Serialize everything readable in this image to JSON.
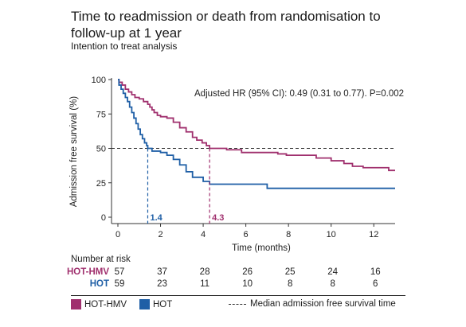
{
  "title": "Time to readmission or death from randomisation to follow-up at 1 year",
  "subtitle": "Intention to treat analysis",
  "colors": {
    "hmv": "#a0306e",
    "hot": "#1f5fa6",
    "median": "#333333"
  },
  "chart_data": {
    "type": "line",
    "step": true,
    "xlabel": "Time (months)",
    "ylabel": "Admission free survival (%)",
    "xlim": [
      0,
      13
    ],
    "ylim": [
      0,
      100
    ],
    "xticks": [
      0,
      2,
      4,
      6,
      8,
      10,
      12
    ],
    "yticks": [
      0,
      25,
      50,
      75,
      100
    ],
    "annotation": "Adjusted HR (95% CI): 0.49 (0.31 to 0.77). P=0.002",
    "median_line": {
      "y": 50
    },
    "medians": [
      {
        "series": "HOT",
        "x": 1.4,
        "label": "1.4"
      },
      {
        "series": "HOT-HMV",
        "x": 4.3,
        "label": "4.3"
      }
    ],
    "series": [
      {
        "name": "HOT-HMV",
        "color": "#a0306e",
        "points": [
          [
            0,
            100
          ],
          [
            0.05,
            98
          ],
          [
            0.2,
            96
          ],
          [
            0.35,
            93
          ],
          [
            0.5,
            91
          ],
          [
            0.65,
            89
          ],
          [
            0.8,
            87
          ],
          [
            1.0,
            86
          ],
          [
            1.2,
            84
          ],
          [
            1.4,
            82
          ],
          [
            1.5,
            80
          ],
          [
            1.6,
            78
          ],
          [
            1.7,
            76
          ],
          [
            1.85,
            74
          ],
          [
            2.0,
            73
          ],
          [
            2.3,
            72
          ],
          [
            2.6,
            69
          ],
          [
            2.9,
            65
          ],
          [
            3.2,
            62
          ],
          [
            3.5,
            58
          ],
          [
            3.7,
            56
          ],
          [
            3.95,
            54
          ],
          [
            4.15,
            52
          ],
          [
            4.3,
            50
          ],
          [
            4.6,
            50
          ],
          [
            5.1,
            49
          ],
          [
            5.8,
            47
          ],
          [
            7.5,
            46
          ],
          [
            7.9,
            45
          ],
          [
            8.7,
            45
          ],
          [
            9.3,
            43
          ],
          [
            10.0,
            41
          ],
          [
            10.6,
            39
          ],
          [
            11.0,
            37
          ],
          [
            11.5,
            36
          ],
          [
            12.7,
            34
          ],
          [
            13.0,
            34
          ]
        ],
        "at_risk": [
          57,
          37,
          28,
          26,
          25,
          24,
          16
        ]
      },
      {
        "name": "HOT",
        "color": "#1f5fa6",
        "points": [
          [
            0,
            100
          ],
          [
            0.05,
            96
          ],
          [
            0.15,
            93
          ],
          [
            0.25,
            90
          ],
          [
            0.35,
            87
          ],
          [
            0.45,
            84
          ],
          [
            0.55,
            80
          ],
          [
            0.65,
            76
          ],
          [
            0.75,
            72
          ],
          [
            0.85,
            68
          ],
          [
            0.95,
            64
          ],
          [
            1.05,
            60
          ],
          [
            1.15,
            57
          ],
          [
            1.25,
            54
          ],
          [
            1.35,
            52
          ],
          [
            1.4,
            50
          ],
          [
            1.6,
            48
          ],
          [
            2.0,
            47
          ],
          [
            2.3,
            45
          ],
          [
            2.6,
            42
          ],
          [
            2.9,
            38
          ],
          [
            3.2,
            33
          ],
          [
            3.5,
            29
          ],
          [
            4.0,
            26
          ],
          [
            4.3,
            24
          ],
          [
            5.0,
            24
          ],
          [
            7.0,
            21
          ],
          [
            13.0,
            21
          ]
        ],
        "at_risk": [
          59,
          23,
          11,
          10,
          8,
          8,
          6
        ]
      }
    ],
    "at_risk": {
      "title": "Number at risk",
      "times": [
        0,
        2,
        4,
        6,
        8,
        10,
        12
      ]
    }
  },
  "legend": {
    "hmv": "HOT-HMV",
    "hot": "HOT",
    "median": "Median admission free survival time"
  }
}
